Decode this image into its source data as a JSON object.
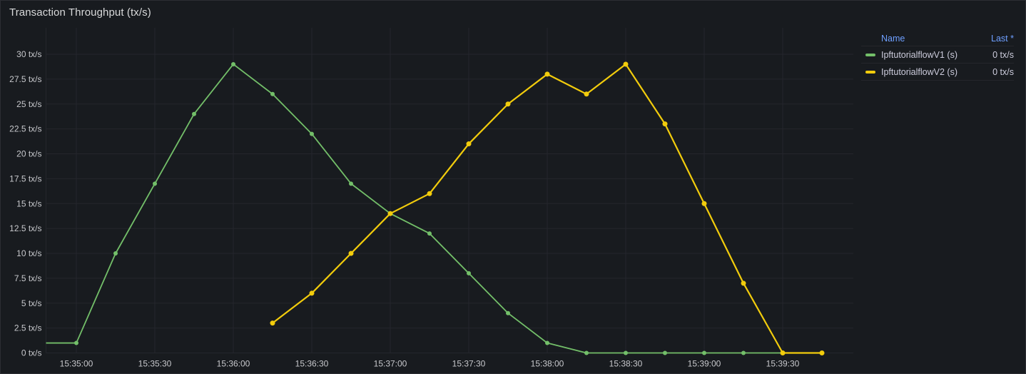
{
  "panel": {
    "title": "Transaction Throughput (tx/s)"
  },
  "colors": {
    "background": "#181b1f",
    "border": "#2c2e33",
    "grid": "#24262c",
    "tick_text": "#c7c8cc",
    "title_text": "#d8d9da",
    "link_blue": "#6e9fff",
    "series_green": "#73bf69",
    "series_yellow": "#f2cc0c"
  },
  "legend": {
    "name_header": "Name",
    "last_header": "Last *",
    "rows": [
      {
        "label": "IpftutorialflowV1 (s)",
        "value": "0 tx/s",
        "color": "#73bf69"
      },
      {
        "label": "IpftutorialflowV2 (s)",
        "value": "0 tx/s",
        "color": "#f2cc0c"
      }
    ]
  },
  "chart_data": {
    "type": "line",
    "title": "Transaction Throughput (tx/s)",
    "xlabel": "",
    "ylabel": "",
    "y_unit": "tx/s",
    "ylim": [
      0,
      32.5
    ],
    "grid": true,
    "legend_position": "right-top-table",
    "x_range": [
      "15:34:48",
      "15:39:57"
    ],
    "x_tick_labels": [
      "15:35:00",
      "15:35:30",
      "15:36:00",
      "15:36:30",
      "15:37:00",
      "15:37:30",
      "15:38:00",
      "15:38:30",
      "15:39:00",
      "15:39:30"
    ],
    "y_tick_labels": [
      "0 tx/s",
      "2.5 tx/s",
      "5 tx/s",
      "7.5 tx/s",
      "10 tx/s",
      "12.5 tx/s",
      "15 tx/s",
      "17.5 tx/s",
      "20 tx/s",
      "22.5 tx/s",
      "25 tx/s",
      "27.5 tx/s",
      "30 tx/s"
    ],
    "series": [
      {
        "name": "IpftutorialflowV1 (s)",
        "color": "#73bf69",
        "points": [
          [
            "15:34:45",
            1
          ],
          [
            "15:35:00",
            1
          ],
          [
            "15:35:15",
            10
          ],
          [
            "15:35:30",
            17
          ],
          [
            "15:35:45",
            24
          ],
          [
            "15:36:00",
            29
          ],
          [
            "15:36:15",
            26
          ],
          [
            "15:36:30",
            22
          ],
          [
            "15:36:45",
            17
          ],
          [
            "15:37:00",
            14
          ],
          [
            "15:37:15",
            12
          ],
          [
            "15:37:30",
            8
          ],
          [
            "15:37:45",
            4
          ],
          [
            "15:38:00",
            1
          ],
          [
            "15:38:15",
            0
          ],
          [
            "15:38:30",
            0
          ],
          [
            "15:38:45",
            0
          ],
          [
            "15:39:00",
            0
          ],
          [
            "15:39:15",
            0
          ],
          [
            "15:39:30",
            0
          ]
        ]
      },
      {
        "name": "IpftutorialflowV2 (s)",
        "color": "#f2cc0c",
        "points": [
          [
            "15:36:15",
            3
          ],
          [
            "15:36:30",
            6
          ],
          [
            "15:36:45",
            10
          ],
          [
            "15:37:00",
            14
          ],
          [
            "15:37:15",
            16
          ],
          [
            "15:37:30",
            21
          ],
          [
            "15:37:45",
            25
          ],
          [
            "15:38:00",
            28
          ],
          [
            "15:38:15",
            26
          ],
          [
            "15:38:30",
            29
          ],
          [
            "15:38:45",
            23
          ],
          [
            "15:39:00",
            15
          ],
          [
            "15:39:15",
            7
          ],
          [
            "15:39:30",
            0
          ],
          [
            "15:39:45",
            0
          ]
        ]
      }
    ]
  }
}
